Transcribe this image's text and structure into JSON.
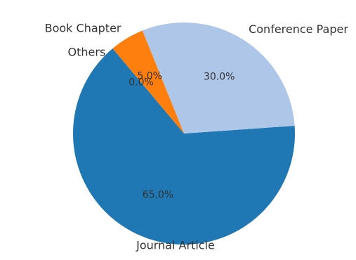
{
  "chart_data": {
    "type": "pie",
    "categories": [
      "Journal Article",
      "Conference Paper",
      "Book Chapter",
      "Others"
    ],
    "values": [
      65.0,
      30.0,
      5.0,
      0.0
    ],
    "percent_labels": [
      "65.0%",
      "30.0%",
      "5.0%",
      "0.0%"
    ],
    "colors": [
      "#1f77b4",
      "#aec7e8",
      "#ff7f0e",
      "#ffbb78"
    ],
    "start_angle_deg": 130,
    "direction": "counterclockwise",
    "title": ""
  }
}
